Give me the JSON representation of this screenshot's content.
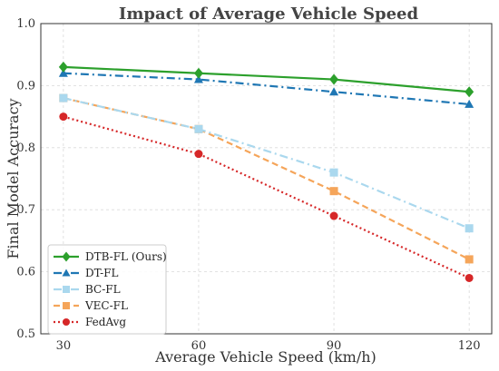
{
  "chart_data": {
    "type": "line",
    "title": "Impact of Average Vehicle Speed",
    "xlabel": "Average Vehicle Speed (km/h)",
    "ylabel": "Final Model Accuracy",
    "x": [
      30,
      60,
      90,
      120
    ],
    "x_tick_labels": [
      "30",
      "60",
      "90",
      "120"
    ],
    "xlim": [
      25,
      125
    ],
    "ylim": [
      0.5,
      1.0
    ],
    "y_ticks": [
      0.5,
      0.6,
      0.7,
      0.8,
      0.9,
      1.0
    ],
    "y_tick_labels": [
      "0.5",
      "0.6",
      "0.7",
      "0.8",
      "0.9",
      "1.0"
    ],
    "grid": true,
    "legend_position": "bottom-left",
    "series": [
      {
        "name": "DTB-FL (Ours)",
        "values": [
          0.93,
          0.92,
          0.91,
          0.89
        ],
        "color": "#2ca02c",
        "marker": "diamond",
        "dash": "solid"
      },
      {
        "name": "DT-FL",
        "values": [
          0.92,
          0.91,
          0.89,
          0.87
        ],
        "color": "#1f77b4",
        "marker": "triangle",
        "dash": "dashdot"
      },
      {
        "name": "BC-FL",
        "values": [
          0.88,
          0.83,
          0.76,
          0.67
        ],
        "color": "#aad8ee",
        "marker": "square",
        "dash": "dashdot"
      },
      {
        "name": "VEC-FL",
        "values": [
          0.88,
          0.83,
          0.73,
          0.62
        ],
        "color": "#f5a55a",
        "marker": "square",
        "dash": "dashed"
      },
      {
        "name": "FedAvg",
        "values": [
          0.85,
          0.79,
          0.69,
          0.59
        ],
        "color": "#d62728",
        "marker": "circle",
        "dash": "dotted"
      }
    ]
  }
}
